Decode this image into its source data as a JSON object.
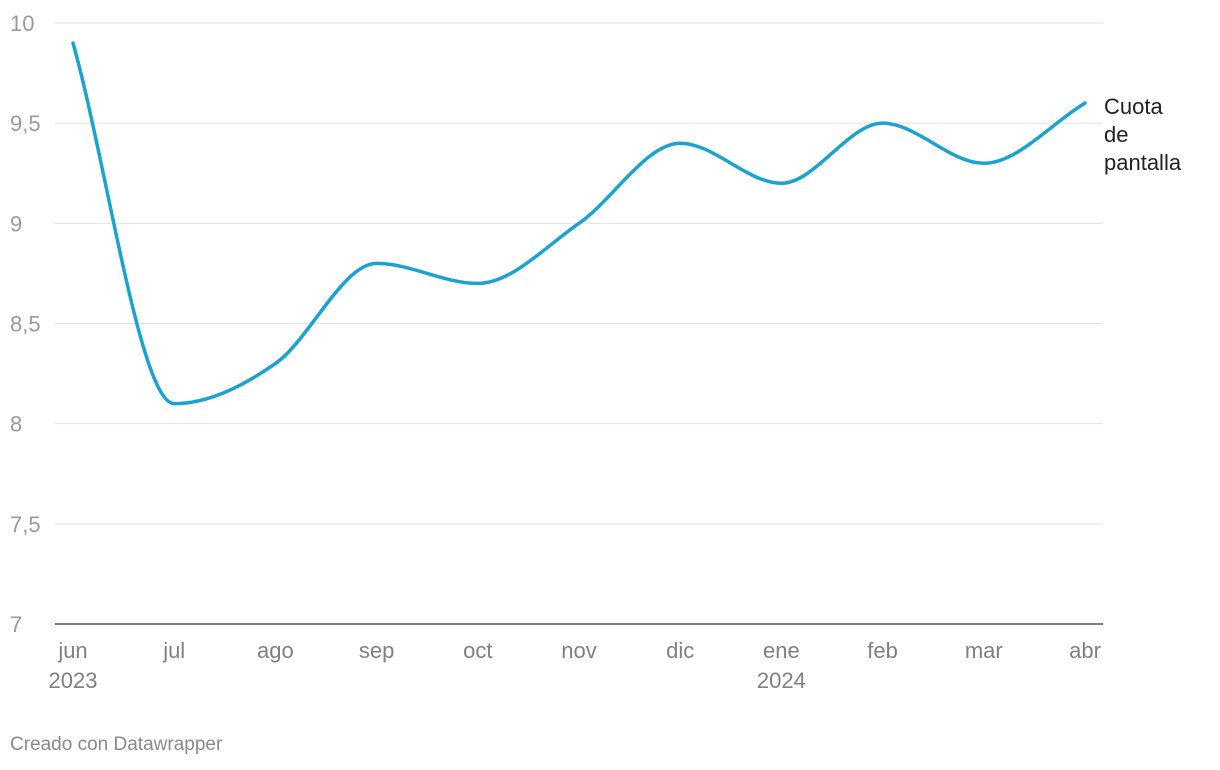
{
  "chart_data": {
    "type": "line",
    "x": [
      "jun 2023",
      "jul",
      "ago",
      "sep",
      "oct",
      "nov",
      "dic",
      "ene 2024",
      "feb",
      "mar",
      "abr"
    ],
    "x_tick_labels": [
      {
        "month": "jun",
        "year": "2023"
      },
      {
        "month": "jul",
        "year": ""
      },
      {
        "month": "ago",
        "year": ""
      },
      {
        "month": "sep",
        "year": ""
      },
      {
        "month": "oct",
        "year": ""
      },
      {
        "month": "nov",
        "year": ""
      },
      {
        "month": "dic",
        "year": ""
      },
      {
        "month": "ene",
        "year": "2024"
      },
      {
        "month": "feb",
        "year": ""
      },
      {
        "month": "mar",
        "year": ""
      },
      {
        "month": "abr",
        "year": ""
      }
    ],
    "series": [
      {
        "name": "Cuota de pantalla",
        "label_lines": [
          "Cuota",
          "de",
          "pantalla"
        ],
        "color": "#1ba3cf",
        "values": [
          9.9,
          8.1,
          8.3,
          8.8,
          8.7,
          9.0,
          9.4,
          9.2,
          9.5,
          9.3,
          9.6
        ]
      }
    ],
    "ylim": [
      7,
      10
    ],
    "y_ticks": [
      "10",
      "9,5",
      "9",
      "8,5",
      "8",
      "7,5",
      "7"
    ],
    "y_tick_values": [
      10,
      9.5,
      9,
      8.5,
      8,
      7.5,
      7
    ],
    "grid": true,
    "title": "",
    "xlabel": "",
    "ylabel": ""
  },
  "footer": {
    "credit": "Creado con Datawrapper"
  }
}
